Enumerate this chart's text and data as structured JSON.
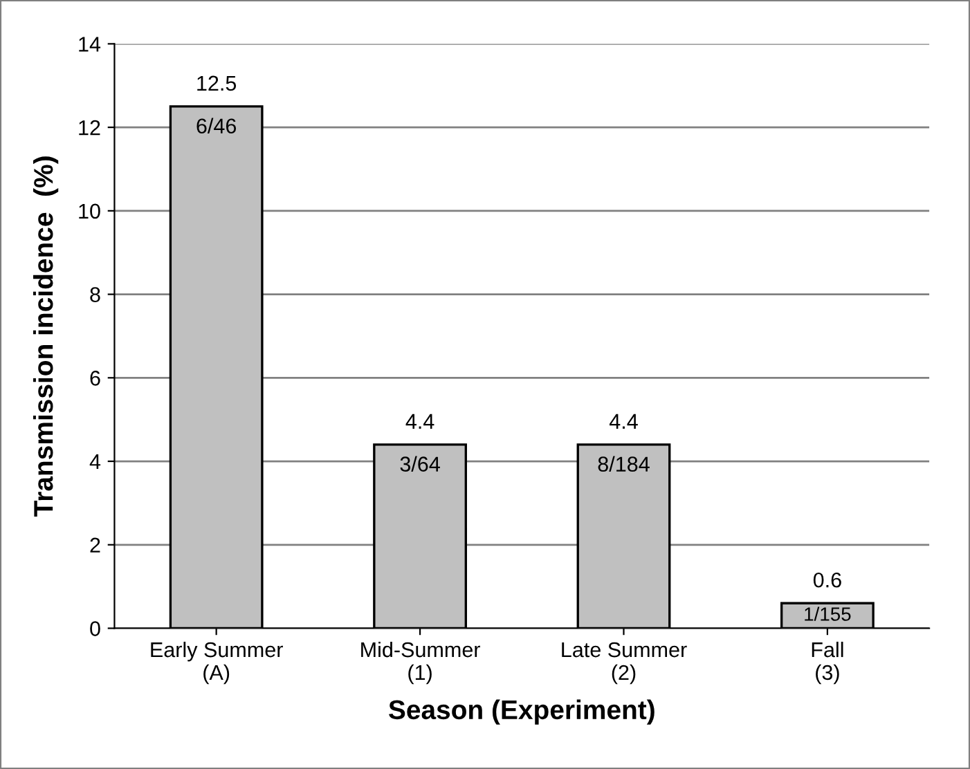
{
  "chart_data": {
    "type": "bar",
    "xlabel": "Season (Experiment)",
    "ylabel": "Transmission incidence  (%)",
    "categories": [
      "Early Summer\n(A)",
      "Mid-Summer\n(1)",
      "Late Summer\n(2)",
      "Fall\n(3)"
    ],
    "values": [
      12.5,
      4.4,
      4.4,
      0.6
    ],
    "color": "#c0c0c0",
    "data_labels": true,
    "ylim": [
      0,
      14
    ],
    "yticks": [
      0,
      2,
      4,
      6,
      8,
      10,
      12,
      14
    ],
    "grid": "y",
    "annotations": [
      "6/46",
      "3/64",
      "8/184",
      "1/155"
    ]
  }
}
